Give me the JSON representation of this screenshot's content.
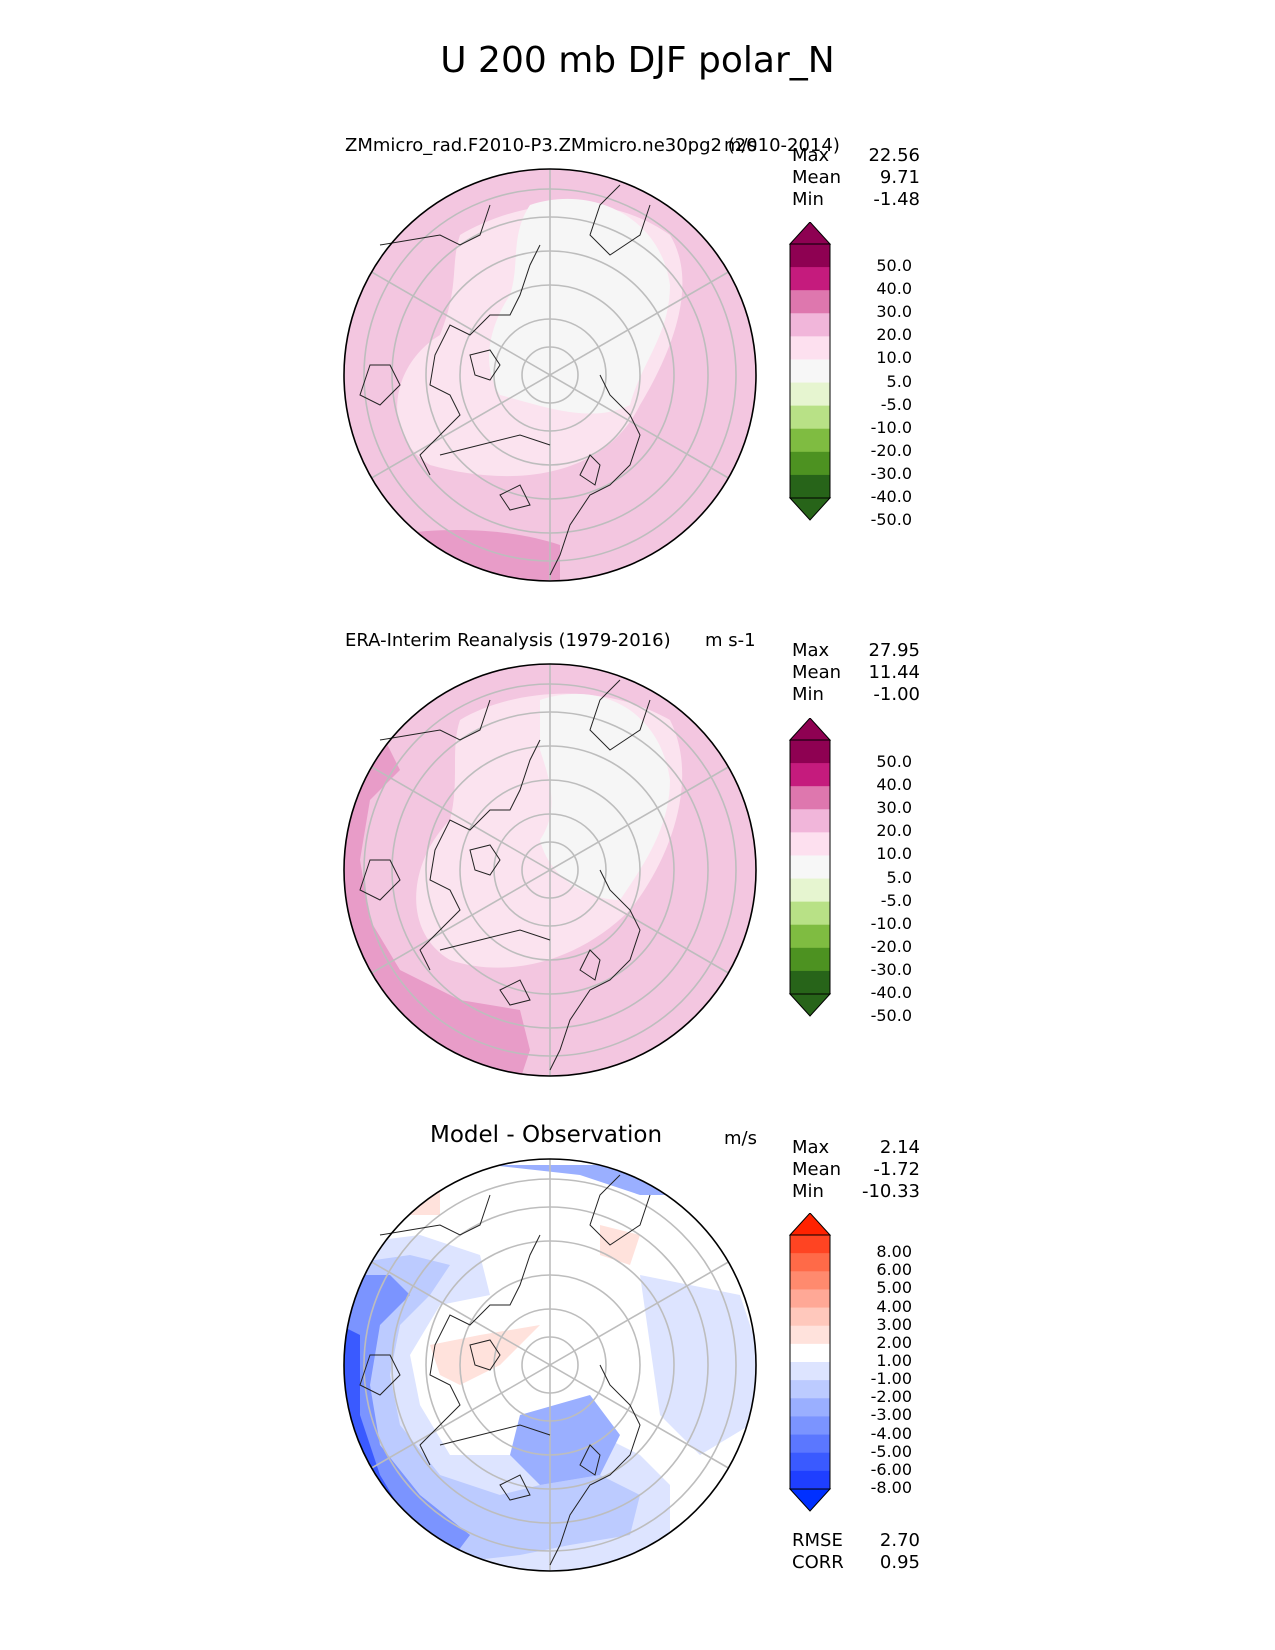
{
  "figure_title": "U 200 mb DJF polar_N",
  "panels": [
    {
      "title": "ZMmicro_rad.F2010-P3.ZMmicro.ne30pg2 (2010-2014)",
      "units": "m/s",
      "stats": [
        {
          "label": "Max",
          "value": "22.56"
        },
        {
          "label": "Mean",
          "value": "9.71"
        },
        {
          "label": "Min",
          "value": "-1.48"
        }
      ],
      "colorbar": {
        "labels": [
          "50.0",
          "40.0",
          "30.0",
          "20.0",
          "10.0",
          "5.0",
          "-5.0",
          "-10.0",
          "-20.0",
          "-30.0",
          "-40.0",
          "-50.0"
        ],
        "colors": [
          "#8e0152",
          "#c51b7d",
          "#de77ae",
          "#f1b6da",
          "#fde0ef",
          "#f7f7f7",
          "#e6f5d0",
          "#b8e186",
          "#7fbc41",
          "#4d9221",
          "#276419"
        ],
        "top_color": "#8e0152",
        "bottom_color": "#276419"
      }
    },
    {
      "title": "ERA-Interim Reanalysis (1979-2016)",
      "units": "m s-1",
      "stats": [
        {
          "label": "Max",
          "value": "27.95"
        },
        {
          "label": "Mean",
          "value": "11.44"
        },
        {
          "label": "Min",
          "value": "-1.00"
        }
      ],
      "colorbar": {
        "labels": [
          "50.0",
          "40.0",
          "30.0",
          "20.0",
          "10.0",
          "5.0",
          "-5.0",
          "-10.0",
          "-20.0",
          "-30.0",
          "-40.0",
          "-50.0"
        ],
        "colors": [
          "#8e0152",
          "#c51b7d",
          "#de77ae",
          "#f1b6da",
          "#fde0ef",
          "#f7f7f7",
          "#e6f5d0",
          "#b8e186",
          "#7fbc41",
          "#4d9221",
          "#276419"
        ],
        "top_color": "#8e0152",
        "bottom_color": "#276419"
      }
    },
    {
      "title": "Model - Observation",
      "units": "m/s",
      "stats": [
        {
          "label": "Max",
          "value": "2.14"
        },
        {
          "label": "Mean",
          "value": "-1.72"
        },
        {
          "label": "Min",
          "value": "-10.33"
        }
      ],
      "extra_stats": [
        {
          "label": "RMSE",
          "value": "2.70"
        },
        {
          "label": "CORR",
          "value": "0.95"
        }
      ],
      "colorbar": {
        "labels": [
          "8.00",
          "6.00",
          "5.00",
          "4.00",
          "3.00",
          "2.00",
          "1.00",
          "-1.00",
          "-2.00",
          "-3.00",
          "-4.00",
          "-5.00",
          "-6.00",
          "-8.00"
        ],
        "colors": [
          "#ff4422",
          "#ff6a48",
          "#ff8a6e",
          "#ffa896",
          "#ffc8bc",
          "#ffe2dc",
          "#ffffff",
          "#dde4ff",
          "#bccbff",
          "#9aafff",
          "#7b94ff",
          "#5b77ff",
          "#3a5aff",
          "#1f3fff"
        ],
        "top_color": "#ff2200",
        "bottom_color": "#0030ff"
      }
    }
  ],
  "colors": {
    "pink_light": "#f3c6e0",
    "pink_lighter": "#fbe3ef",
    "pink_mid": "#e89cc8",
    "near_white": "#f6f6f6",
    "blue_light": "#dde4ff",
    "blue_mid": "#9aafff",
    "blue_dark": "#3a5aff",
    "salmon_light": "#ffe2dc"
  }
}
